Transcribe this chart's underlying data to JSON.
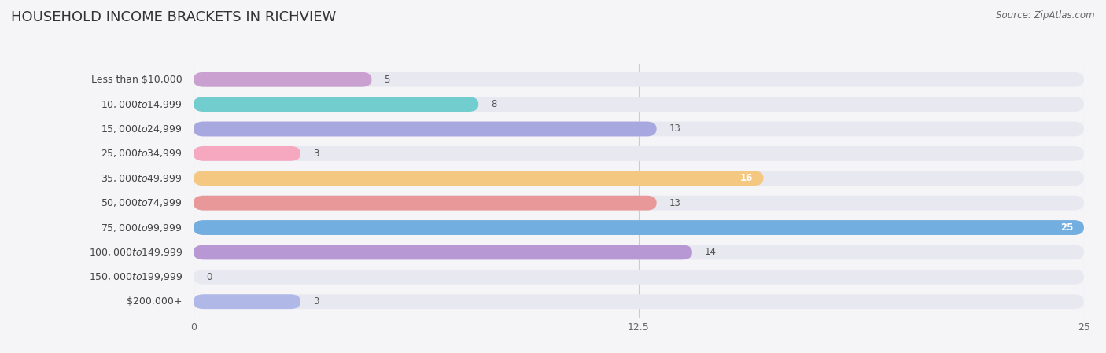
{
  "title": "HOUSEHOLD INCOME BRACKETS IN RICHVIEW",
  "source": "Source: ZipAtlas.com",
  "categories": [
    "Less than $10,000",
    "$10,000 to $14,999",
    "$15,000 to $24,999",
    "$25,000 to $34,999",
    "$35,000 to $49,999",
    "$50,000 to $74,999",
    "$75,000 to $99,999",
    "$100,000 to $149,999",
    "$150,000 to $199,999",
    "$200,000+"
  ],
  "values": [
    5,
    8,
    13,
    3,
    16,
    13,
    25,
    14,
    0,
    3
  ],
  "bar_colors": [
    "#c9a0d0",
    "#72cece",
    "#a8a8e0",
    "#f5a8c0",
    "#f5c882",
    "#e89898",
    "#72aee0",
    "#b898d4",
    "#72cece",
    "#b0b8e8"
  ],
  "xlim": [
    0,
    25
  ],
  "xticks": [
    0,
    12.5,
    25
  ],
  "xtick_labels": [
    "0",
    "12.5",
    "25"
  ],
  "background_color": "#f5f5f8",
  "bar_background_color": "#e8e8f0",
  "title_fontsize": 13,
  "label_fontsize": 9,
  "value_fontsize": 8.5,
  "source_fontsize": 8.5
}
